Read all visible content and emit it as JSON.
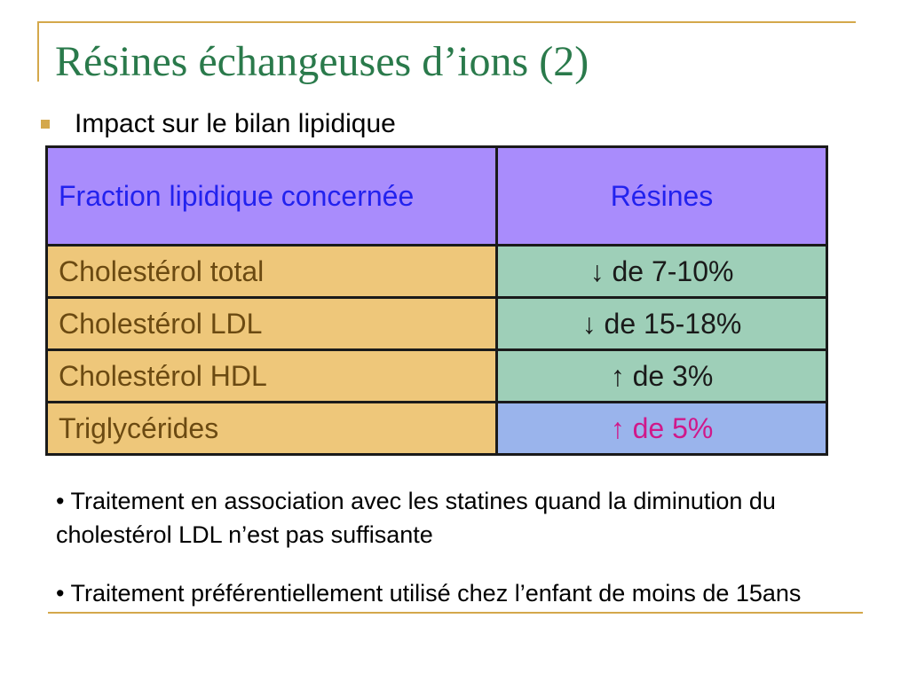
{
  "title": "Résines échangeuses d’ions (2)",
  "bullet": "Impact sur le bilan lipidique",
  "table": {
    "headers": [
      "Fraction lipidique concernée",
      "Résines"
    ],
    "rows": [
      {
        "fraction": "Cholestérol total",
        "value": "↓ de 7-10%"
      },
      {
        "fraction": "Cholestérol LDL",
        "value": "↓ de 15-18%"
      },
      {
        "fraction": "Cholestérol HDL",
        "value": "↑ de 3%"
      },
      {
        "fraction": "Triglycérides",
        "value": "↑ de 5%"
      }
    ]
  },
  "notes": [
    "• Traitement en association avec les statines quand la diminution du cholestérol LDL n’est pas suffisante",
    "• Traitement préférentiellement utilisé chez l’enfant de moins de 15ans"
  ],
  "colors": {
    "title": "#2a7a4b",
    "accent_lines": "#d4a84b",
    "header_bg": "#a98cfc",
    "header_text": "#2222ee",
    "fraction_bg": "#eec77a",
    "fraction_text": "#6b4a12",
    "value_bg": "#9ecfb8",
    "highlight_bg": "#9ab4ec",
    "highlight_text": "#d0188a"
  }
}
